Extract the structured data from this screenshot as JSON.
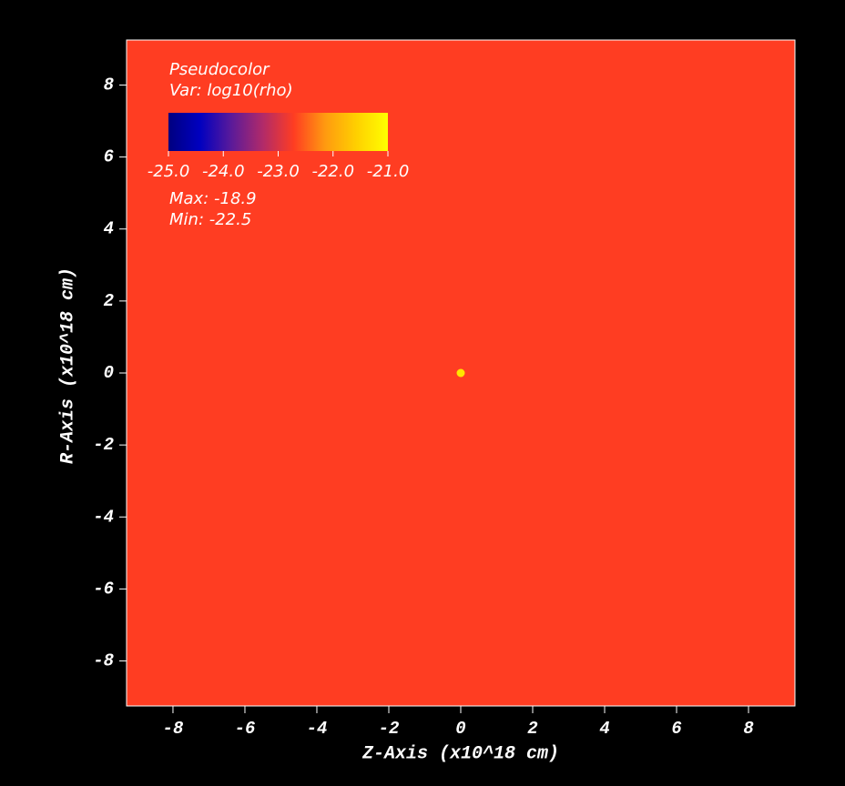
{
  "chart_data": {
    "type": "heatmap",
    "xlabel": "Z-Axis (x10^18 cm)",
    "ylabel": "R-Axis (x10^18 cm)",
    "xlim": [
      -9.29,
      9.29
    ],
    "ylim": [
      -9.25,
      9.25
    ],
    "xticks": [
      -8,
      -6,
      -4,
      -2,
      0,
      2,
      4,
      6,
      8
    ],
    "yticks": [
      -8,
      -6,
      -4,
      -2,
      0,
      2,
      4,
      6,
      8
    ],
    "background_color": "#ff3d22",
    "series": [
      {
        "color": "#ffe600",
        "x": [
          0
        ],
        "values": [
          0
        ]
      }
    ],
    "legend": {
      "title": "Pseudocolor",
      "variable": "Var: log10(rho)",
      "max": "Max: -18.9",
      "min": "Min: -22.5",
      "clim": [
        -25,
        -21
      ],
      "ticks": [
        {
          "value": -25,
          "label": "-25.0"
        },
        {
          "value": -24,
          "label": "-24.0"
        },
        {
          "value": -23,
          "label": "-23.0"
        },
        {
          "value": -22,
          "label": "-22.0"
        },
        {
          "value": -21,
          "label": "-21.0"
        }
      ],
      "colormap": [
        "#000080",
        "#0000c0",
        "#5a1a9a",
        "#b02a6a",
        "#ff3d22",
        "#ff9a10",
        "#ffd000",
        "#ffff00"
      ]
    }
  }
}
